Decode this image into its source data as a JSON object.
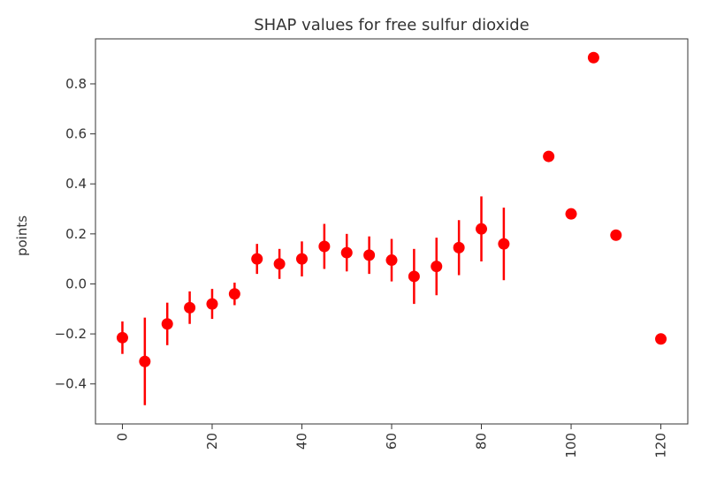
{
  "chart_data": {
    "type": "scatter",
    "title": "SHAP values for free sulfur dioxide",
    "xlabel": "",
    "ylabel": "points",
    "xlim": [
      -6,
      126
    ],
    "ylim": [
      -0.56,
      0.98
    ],
    "xticks": [
      0,
      20,
      40,
      60,
      80,
      100,
      120
    ],
    "xtick_labels": [
      "0",
      "20",
      "40",
      "60",
      "80",
      "100",
      "120"
    ],
    "yticks": [
      -0.4,
      -0.2,
      0.0,
      0.2,
      0.4,
      0.6,
      0.8
    ],
    "ytick_labels": [
      "−0.4",
      "−0.2",
      "0.0",
      "0.2",
      "0.4",
      "0.6",
      "0.8"
    ],
    "grid": false,
    "series": [
      {
        "color": "#ff0000",
        "points": [
          {
            "x": 0,
            "y": -0.215,
            "err": 0.065
          },
          {
            "x": 5,
            "y": -0.31,
            "err": 0.175
          },
          {
            "x": 10,
            "y": -0.16,
            "err": 0.085
          },
          {
            "x": 15,
            "y": -0.095,
            "err": 0.065
          },
          {
            "x": 20,
            "y": -0.08,
            "err": 0.06
          },
          {
            "x": 25,
            "y": -0.04,
            "err": 0.045
          },
          {
            "x": 30,
            "y": 0.1,
            "err": 0.06
          },
          {
            "x": 35,
            "y": 0.08,
            "err": 0.06
          },
          {
            "x": 40,
            "y": 0.1,
            "err": 0.07
          },
          {
            "x": 45,
            "y": 0.15,
            "err": 0.09
          },
          {
            "x": 50,
            "y": 0.125,
            "err": 0.075
          },
          {
            "x": 55,
            "y": 0.115,
            "err": 0.075
          },
          {
            "x": 60,
            "y": 0.095,
            "err": 0.085
          },
          {
            "x": 65,
            "y": 0.03,
            "err": 0.11
          },
          {
            "x": 70,
            "y": 0.07,
            "err": 0.115
          },
          {
            "x": 75,
            "y": 0.145,
            "err": 0.11
          },
          {
            "x": 80,
            "y": 0.22,
            "err": 0.13
          },
          {
            "x": 85,
            "y": 0.16,
            "err": 0.145
          },
          {
            "x": 95,
            "y": 0.51,
            "err": 0
          },
          {
            "x": 100,
            "y": 0.28,
            "err": 0
          },
          {
            "x": 105,
            "y": 0.905,
            "err": 0
          },
          {
            "x": 110,
            "y": 0.195,
            "err": 0
          },
          {
            "x": 120,
            "y": -0.22,
            "err": 0
          }
        ]
      }
    ]
  }
}
